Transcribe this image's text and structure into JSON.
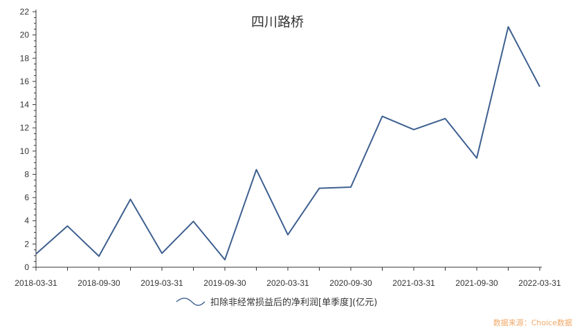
{
  "chart_data": {
    "type": "line",
    "title": "四川路桥",
    "xlabel": "",
    "ylabel": "",
    "ylim": [
      0,
      22
    ],
    "yticks": [
      0,
      2,
      4,
      6,
      8,
      10,
      12,
      14,
      16,
      18,
      20,
      22
    ],
    "x_tick_labels": [
      "2018-03-31",
      "2018-09-30",
      "2019-03-31",
      "2019-09-30",
      "2020-03-31",
      "2020-09-30",
      "2021-03-31",
      "2021-09-30",
      "2022-03-31"
    ],
    "x": [
      "2018-03-31",
      "2018-06-30",
      "2018-09-30",
      "2018-12-31",
      "2019-03-31",
      "2019-06-30",
      "2019-09-30",
      "2019-12-31",
      "2020-03-31",
      "2020-06-30",
      "2020-09-30",
      "2020-12-31",
      "2021-03-31",
      "2021-06-30",
      "2021-09-30",
      "2021-12-31",
      "2022-03-31"
    ],
    "series": [
      {
        "name": "扣除非经常损益后的净利润[单季度](亿元)",
        "color": "#3d5f8f",
        "values": [
          1.15,
          3.55,
          0.95,
          5.85,
          1.2,
          3.95,
          0.65,
          8.4,
          2.8,
          6.8,
          6.9,
          13.0,
          11.85,
          12.8,
          9.4,
          20.7,
          15.55
        ]
      }
    ],
    "grid": false,
    "legend": "bottom-center",
    "source_note": "数据来源：Choice数据"
  }
}
